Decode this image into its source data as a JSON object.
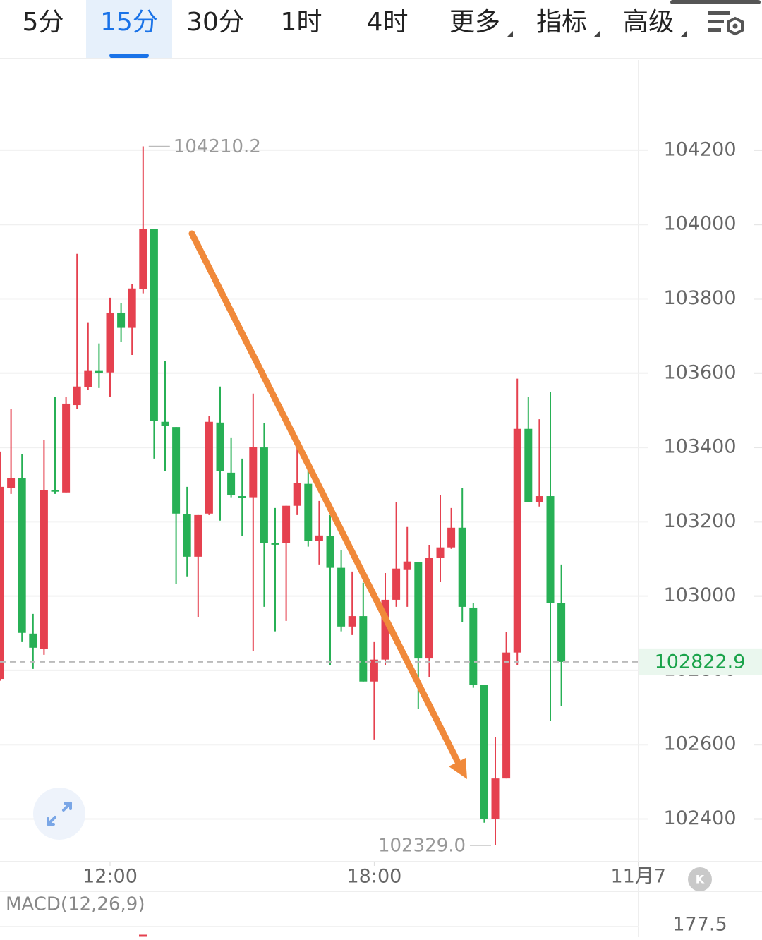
{
  "tabs": {
    "items": [
      "5分",
      "15分",
      "30分",
      "1时",
      "4时",
      "更多",
      "指标",
      "高级"
    ],
    "active": 1,
    "dropdown": [
      5,
      6,
      7
    ]
  },
  "chart_data": {
    "type": "candlestick",
    "up_color": "#e5414f",
    "down_color": "#27b055",
    "open": [
      102777,
      103290,
      103317,
      102899,
      102857,
      103286,
      103279,
      103514,
      103562,
      103606,
      103602,
      103763,
      103722,
      103826,
      103988,
      103469,
      103455,
      103220,
      103106,
      103222,
      103467,
      103332,
      103269,
      103266,
      103400,
      103142,
      103142,
      103243,
      103302,
      103148,
      103161,
      103076,
      102918,
      102946,
      102770,
      102829,
      102990,
      103072,
      103091,
      102832,
      103102,
      103131,
      103184,
      102969,
      102760,
      102401,
      102509,
      102848,
      103450,
      103252,
      103269,
      102981
    ],
    "high": [
      103389,
      103503,
      103383,
      102952,
      103421,
      103537,
      103537,
      103921,
      103737,
      103680,
      103803,
      103788,
      103839,
      104210.2,
      103988,
      103632,
      103455,
      103294,
      103218,
      103484,
      103564,
      103427,
      103370,
      103545,
      103465,
      103237,
      103243,
      103399,
      103342,
      103256,
      103218,
      103123,
      103066,
      103036,
      102876,
      103062,
      103252,
      103186,
      103091,
      103138,
      103271,
      103237,
      103290,
      102981,
      102760,
      102620,
      102903,
      103585,
      103537,
      103476,
      103550,
      103085
    ],
    "low": [
      102772,
      103275,
      102876,
      102804,
      102842,
      103275,
      103279,
      103503,
      103554,
      103560,
      103535,
      103684,
      103649,
      103815,
      103370,
      103336,
      103033,
      103053,
      102943,
      103218,
      103203,
      103266,
      103161,
      102853,
      102971,
      102905,
      102933,
      103218,
      103133,
      103085,
      102815,
      102905,
      102895,
      102770,
      102614,
      102815,
      102971,
      102971,
      102696,
      102781,
      103038,
      103127,
      102929,
      102753,
      102390,
      102329,
      102509,
      102815,
      103252,
      103241,
      102663,
      102705
    ],
    "close": [
      103294,
      103317,
      102901,
      102861,
      103285,
      103281,
      103518,
      103564,
      103606,
      103600,
      103763,
      103722,
      103828,
      103988,
      103471,
      103459,
      103222,
      103106,
      103218,
      103469,
      103336,
      103271,
      103266,
      103402,
      103142,
      103140,
      103243,
      103304,
      103148,
      103163,
      103076,
      102918,
      102946,
      102770,
      102829,
      102990,
      103074,
      103093,
      102832,
      103102,
      103131,
      103184,
      102971,
      102760,
      102401,
      102509,
      102848,
      103450,
      103252,
      103269,
      102981,
      102822.9
    ],
    "ylim": [
      102287,
      104443
    ],
    "yticks": [
      102400,
      102600,
      102800,
      103000,
      103200,
      103400,
      103600,
      103800,
      104000,
      104200
    ],
    "xticks": [
      {
        "value": 10,
        "label": "12:00"
      },
      {
        "value": 34,
        "label": "18:00"
      },
      {
        "value": 58,
        "label": "11月7"
      }
    ],
    "last_price": 102822.9,
    "high_marker": 104210.2,
    "low_marker": {
      "value": 102329,
      "label": "102329.0"
    },
    "grid": true
  },
  "indicator": {
    "label": "MACD(12,26,9)",
    "yticks": [
      177.5
    ]
  }
}
